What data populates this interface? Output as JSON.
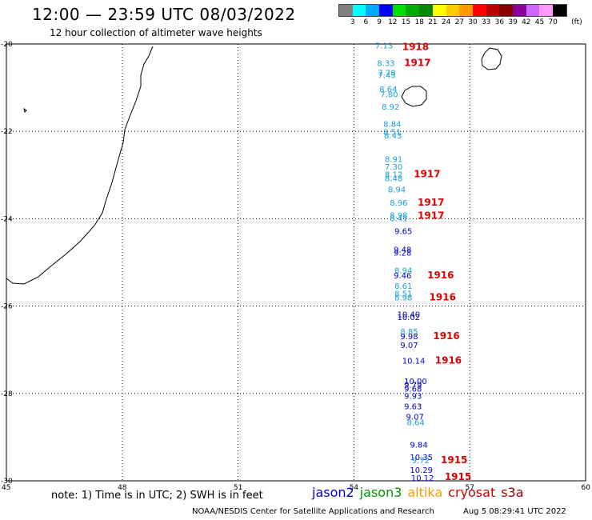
{
  "header": {
    "title": "12:00 — 23:59 UTC 08/03/2022",
    "subtitle": "12 hour collection of altimeter wave heights"
  },
  "legend": {
    "unit": "(ft)",
    "colors": [
      "#808080",
      "#00ffff",
      "#00aaff",
      "#0000ff",
      "#00dd00",
      "#00aa00",
      "#008800",
      "#ffff00",
      "#ffcc00",
      "#ff9900",
      "#ff0000",
      "#bb0000",
      "#880000",
      "#880099",
      "#cc66ff",
      "#ff99ff",
      "#000000"
    ],
    "ticks": [
      "3",
      "6",
      "9",
      "12",
      "15",
      "18",
      "21",
      "24",
      "27",
      "30",
      "33",
      "36",
      "39",
      "42",
      "45",
      "70"
    ]
  },
  "axes": {
    "lon_ticks": [
      "45",
      "48",
      "51",
      "54",
      "57",
      "60"
    ],
    "lat_ticks": [
      "-20",
      "-22",
      "-24",
      "-26",
      "-28",
      "-30"
    ],
    "lon_range": [
      45,
      60
    ],
    "lat_range": [
      -20,
      -30
    ]
  },
  "footer": {
    "note": "note: 1) Time is in UTC; 2) SWH is in feet",
    "missions": [
      {
        "name": "jason2",
        "color": "#0000cc"
      },
      {
        "name": "jason3",
        "color": "#009900"
      },
      {
        "name": "altika",
        "color": "#ff9900"
      },
      {
        "name": "cryosat",
        "color": "#cc0000"
      },
      {
        "name": "s3a",
        "color": "#990000"
      }
    ],
    "credit": "NOAA/NESDIS Center for Satellite Applications and Research",
    "timestamp": "Aug  5 08:29:41 UTC 2022"
  },
  "observations": [
    {
      "lon": 54.55,
      "lat": -20.1,
      "text": "7.13",
      "color": "#1aa0d8"
    },
    {
      "lon": 54.6,
      "lat": -20.5,
      "text": "8.33",
      "color": "#1aa0d8"
    },
    {
      "lon": 54.62,
      "lat": -20.72,
      "text": "7.78",
      "color": "#1aa0d8"
    },
    {
      "lon": 54.62,
      "lat": -20.78,
      "text": "7.43",
      "color": "#1aa0d8"
    },
    {
      "lon": 54.66,
      "lat": -21.1,
      "text": "8.64",
      "color": "#1aa0d8"
    },
    {
      "lon": 54.68,
      "lat": -21.22,
      "text": "7.80",
      "color": "#1aa0d8"
    },
    {
      "lon": 54.72,
      "lat": -21.5,
      "text": "8.92",
      "color": "#1aa0d8"
    },
    {
      "lon": 54.76,
      "lat": -21.9,
      "text": "8.84",
      "color": "#1aa0d8"
    },
    {
      "lon": 54.76,
      "lat": -22.08,
      "text": "8.51",
      "color": "#1aa0d8"
    },
    {
      "lon": 54.78,
      "lat": -22.16,
      "text": "8.43",
      "color": "#1aa0d8"
    },
    {
      "lon": 54.8,
      "lat": -22.7,
      "text": "8.91",
      "color": "#1aa0d8"
    },
    {
      "lon": 54.8,
      "lat": -22.88,
      "text": "7.30",
      "color": "#1aa0d8"
    },
    {
      "lon": 54.8,
      "lat": -23.05,
      "text": "8.12",
      "color": "#1aa0d8"
    },
    {
      "lon": 54.8,
      "lat": -23.14,
      "text": "8.48",
      "color": "#1aa0d8"
    },
    {
      "lon": 54.88,
      "lat": -23.4,
      "text": "8.94",
      "color": "#1aa0d8"
    },
    {
      "lon": 54.93,
      "lat": -23.7,
      "text": "8.96",
      "color": "#1aa0d8"
    },
    {
      "lon": 54.93,
      "lat": -23.98,
      "text": "8.98",
      "color": "#1aa0d8"
    },
    {
      "lon": 54.93,
      "lat": -24.06,
      "text": "8.41",
      "color": "#1aa0d8"
    },
    {
      "lon": 55.05,
      "lat": -24.35,
      "text": "9.65",
      "color": "#0000cc"
    },
    {
      "lon": 55.03,
      "lat": -24.77,
      "text": "9.48",
      "color": "#0000cc"
    },
    {
      "lon": 55.03,
      "lat": -24.84,
      "text": "9.28",
      "color": "#0000cc"
    },
    {
      "lon": 55.05,
      "lat": -25.25,
      "text": "8.94",
      "color": "#1aa0d8"
    },
    {
      "lon": 55.03,
      "lat": -25.37,
      "text": "9.46",
      "color": "#0000cc"
    },
    {
      "lon": 55.05,
      "lat": -25.6,
      "text": "8.61",
      "color": "#1aa0d8"
    },
    {
      "lon": 55.05,
      "lat": -25.78,
      "text": "8.51",
      "color": "#1aa0d8"
    },
    {
      "lon": 55.05,
      "lat": -25.87,
      "text": "8.98",
      "color": "#1aa0d8"
    },
    {
      "lon": 55.12,
      "lat": -26.25,
      "text": "10.40",
      "color": "#0000cc"
    },
    {
      "lon": 55.12,
      "lat": -26.32,
      "text": "10.02",
      "color": "#0000cc"
    },
    {
      "lon": 55.2,
      "lat": -26.65,
      "text": "8.85",
      "color": "#1aa0d8"
    },
    {
      "lon": 55.2,
      "lat": -26.76,
      "text": "9.98",
      "color": "#0000cc"
    },
    {
      "lon": 55.2,
      "lat": -26.96,
      "text": "9.07",
      "color": "#0000cc"
    },
    {
      "lon": 55.25,
      "lat": -27.32,
      "text": "10.14",
      "color": "#0000cc"
    },
    {
      "lon": 55.3,
      "lat": -27.78,
      "text": "10.00",
      "color": "#0000cc"
    },
    {
      "lon": 55.3,
      "lat": -27.87,
      "text": "9.79",
      "color": "#0000cc"
    },
    {
      "lon": 55.3,
      "lat": -27.96,
      "text": "9.68",
      "color": "#0000cc"
    },
    {
      "lon": 55.3,
      "lat": -28.12,
      "text": "9.93",
      "color": "#0000cc"
    },
    {
      "lon": 55.3,
      "lat": -28.36,
      "text": "9.63",
      "color": "#0000cc"
    },
    {
      "lon": 55.35,
      "lat": -28.6,
      "text": "9.07",
      "color": "#0000cc"
    },
    {
      "lon": 55.37,
      "lat": -28.73,
      "text": "8.64",
      "color": "#1aa0d8"
    },
    {
      "lon": 55.45,
      "lat": -29.24,
      "text": "9.84",
      "color": "#0000cc"
    },
    {
      "lon": 55.45,
      "lat": -29.52,
      "text": "10.35",
      "color": "#0000cc"
    },
    {
      "lon": 55.5,
      "lat": -29.6,
      "text": "9.72",
      "color": "#1aa0d8"
    },
    {
      "lon": 55.45,
      "lat": -29.82,
      "text": "10.29",
      "color": "#0000cc"
    },
    {
      "lon": 55.48,
      "lat": -30.0,
      "text": "10.12",
      "color": "#0000cc"
    }
  ],
  "hour_labels": [
    {
      "lon": 55.25,
      "lat": -20.14,
      "text": "1918",
      "color": "#e00000"
    },
    {
      "lon": 55.3,
      "lat": -20.5,
      "text": "1917",
      "color": "#e00000"
    },
    {
      "lon": 55.55,
      "lat": -23.05,
      "text": "1917",
      "color": "#e00000"
    },
    {
      "lon": 55.65,
      "lat": -23.7,
      "text": "1917",
      "color": "#e00000"
    },
    {
      "lon": 55.65,
      "lat": -24.0,
      "text": "1917",
      "color": "#e00000"
    },
    {
      "lon": 55.9,
      "lat": -25.37,
      "text": "1916",
      "color": "#e00000"
    },
    {
      "lon": 55.95,
      "lat": -25.87,
      "text": "1916",
      "color": "#e00000"
    },
    {
      "lon": 56.05,
      "lat": -26.76,
      "text": "1916",
      "color": "#e00000"
    },
    {
      "lon": 56.1,
      "lat": -27.32,
      "text": "1916",
      "color": "#e00000"
    },
    {
      "lon": 56.25,
      "lat": -29.6,
      "text": "1915",
      "color": "#e00000"
    },
    {
      "lon": 56.35,
      "lat": -29.98,
      "text": "1915",
      "color": "#e00000"
    }
  ]
}
